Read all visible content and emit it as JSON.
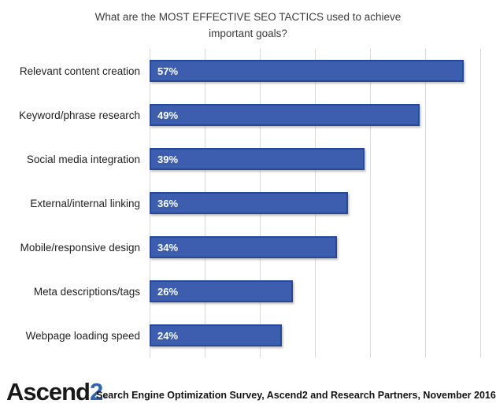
{
  "title": {
    "line1": "What are the MOST EFFECTIVE SEO TACTICS used to achieve",
    "line2": "important goals?"
  },
  "chart_data": {
    "type": "bar",
    "orientation": "horizontal",
    "title": "What are the MOST EFFECTIVE SEO TACTICS used to achieve important goals?",
    "categories": [
      "Relevant content creation",
      "Keyword/phrase research",
      "Social media integration",
      "External/internal linking",
      "Mobile/responsive design",
      "Meta descriptions/tags",
      "Webpage loading speed"
    ],
    "values": [
      57,
      49,
      39,
      36,
      34,
      26,
      24
    ],
    "value_labels": [
      "57%",
      "49%",
      "39%",
      "36%",
      "34%",
      "26%",
      "24%"
    ],
    "xlim": [
      0,
      60
    ],
    "gridline_interval": 10,
    "grid": "vertical-only",
    "legend": "none",
    "axis_tick_labels": "none",
    "colors": {
      "bar_fill": "#3D5EAE",
      "bar_border": "#27479B",
      "gridline": "#D9D9D9",
      "value_label": "#FFFFFF"
    }
  },
  "footer": {
    "logo": {
      "word": "Ascend",
      "digit": "2",
      "trademark": "™"
    },
    "source_text": "Search Engine Optimization Survey, Ascend2 and Research Partners, November 2016"
  }
}
